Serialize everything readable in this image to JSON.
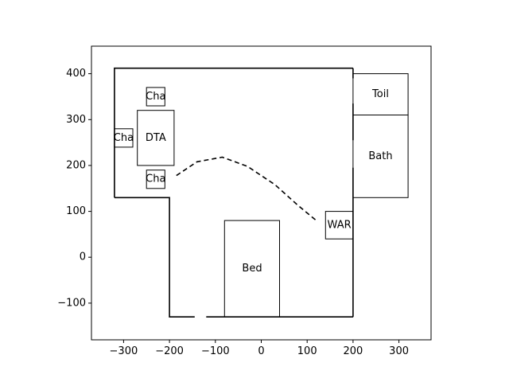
{
  "chart_data": {
    "type": "floor-plan",
    "title": "",
    "xlabel": "",
    "ylabel": "",
    "xlim": [
      -370,
      370
    ],
    "ylim": [
      -180,
      460
    ],
    "x_ticks": [
      -300,
      -200,
      -100,
      0,
      100,
      200,
      300
    ],
    "y_ticks": [
      -100,
      0,
      100,
      200,
      300,
      400
    ],
    "x_tick_labels": [
      "−300",
      "−200",
      "−100",
      "0",
      "100",
      "200",
      "300"
    ],
    "y_tick_labels": [
      "−100",
      "0",
      "100",
      "200",
      "300",
      "400"
    ],
    "grid": false,
    "walls": [
      [
        [
          -320,
          130
        ],
        [
          -320,
          412
        ],
        [
          200,
          412
        ]
      ],
      [
        [
          200,
          412
        ],
        [
          200,
          390
        ]
      ],
      [
        [
          200,
          335
        ],
        [
          200,
          255
        ]
      ],
      [
        [
          200,
          195
        ],
        [
          200,
          -130
        ]
      ],
      [
        [
          200,
          -130
        ],
        [
          -120,
          -130
        ]
      ],
      [
        [
          -145,
          -130
        ],
        [
          -200,
          -130
        ],
        [
          -200,
          130
        ],
        [
          -320,
          130
        ]
      ]
    ],
    "furniture": [
      {
        "id": "cha-top",
        "label": "Cha",
        "x": -250,
        "y": 330,
        "w": 40,
        "h": 40
      },
      {
        "id": "dta",
        "label": "DTA",
        "x": -270,
        "y": 200,
        "w": 80,
        "h": 120
      },
      {
        "id": "cha-left",
        "label": "Cha",
        "x": -320,
        "y": 240,
        "w": 40,
        "h": 40
      },
      {
        "id": "cha-bottom",
        "label": "Cha",
        "x": -250,
        "y": 150,
        "w": 40,
        "h": 40
      },
      {
        "id": "toil",
        "label": "Toil",
        "x": 200,
        "y": 310,
        "w": 120,
        "h": 90
      },
      {
        "id": "bath",
        "label": "Bath",
        "x": 200,
        "y": 130,
        "w": 120,
        "h": 180
      },
      {
        "id": "war",
        "label": "WAR",
        "x": 140,
        "y": 40,
        "w": 60,
        "h": 60
      },
      {
        "id": "bed",
        "label": "Bed",
        "x": -80,
        "y": -130,
        "w": 120,
        "h": 210
      }
    ],
    "path": [
      [
        -185,
        178
      ],
      [
        -140,
        208
      ],
      [
        -85,
        218
      ],
      [
        -30,
        198
      ],
      [
        30,
        158
      ],
      [
        80,
        113
      ],
      [
        120,
        80
      ]
    ]
  }
}
